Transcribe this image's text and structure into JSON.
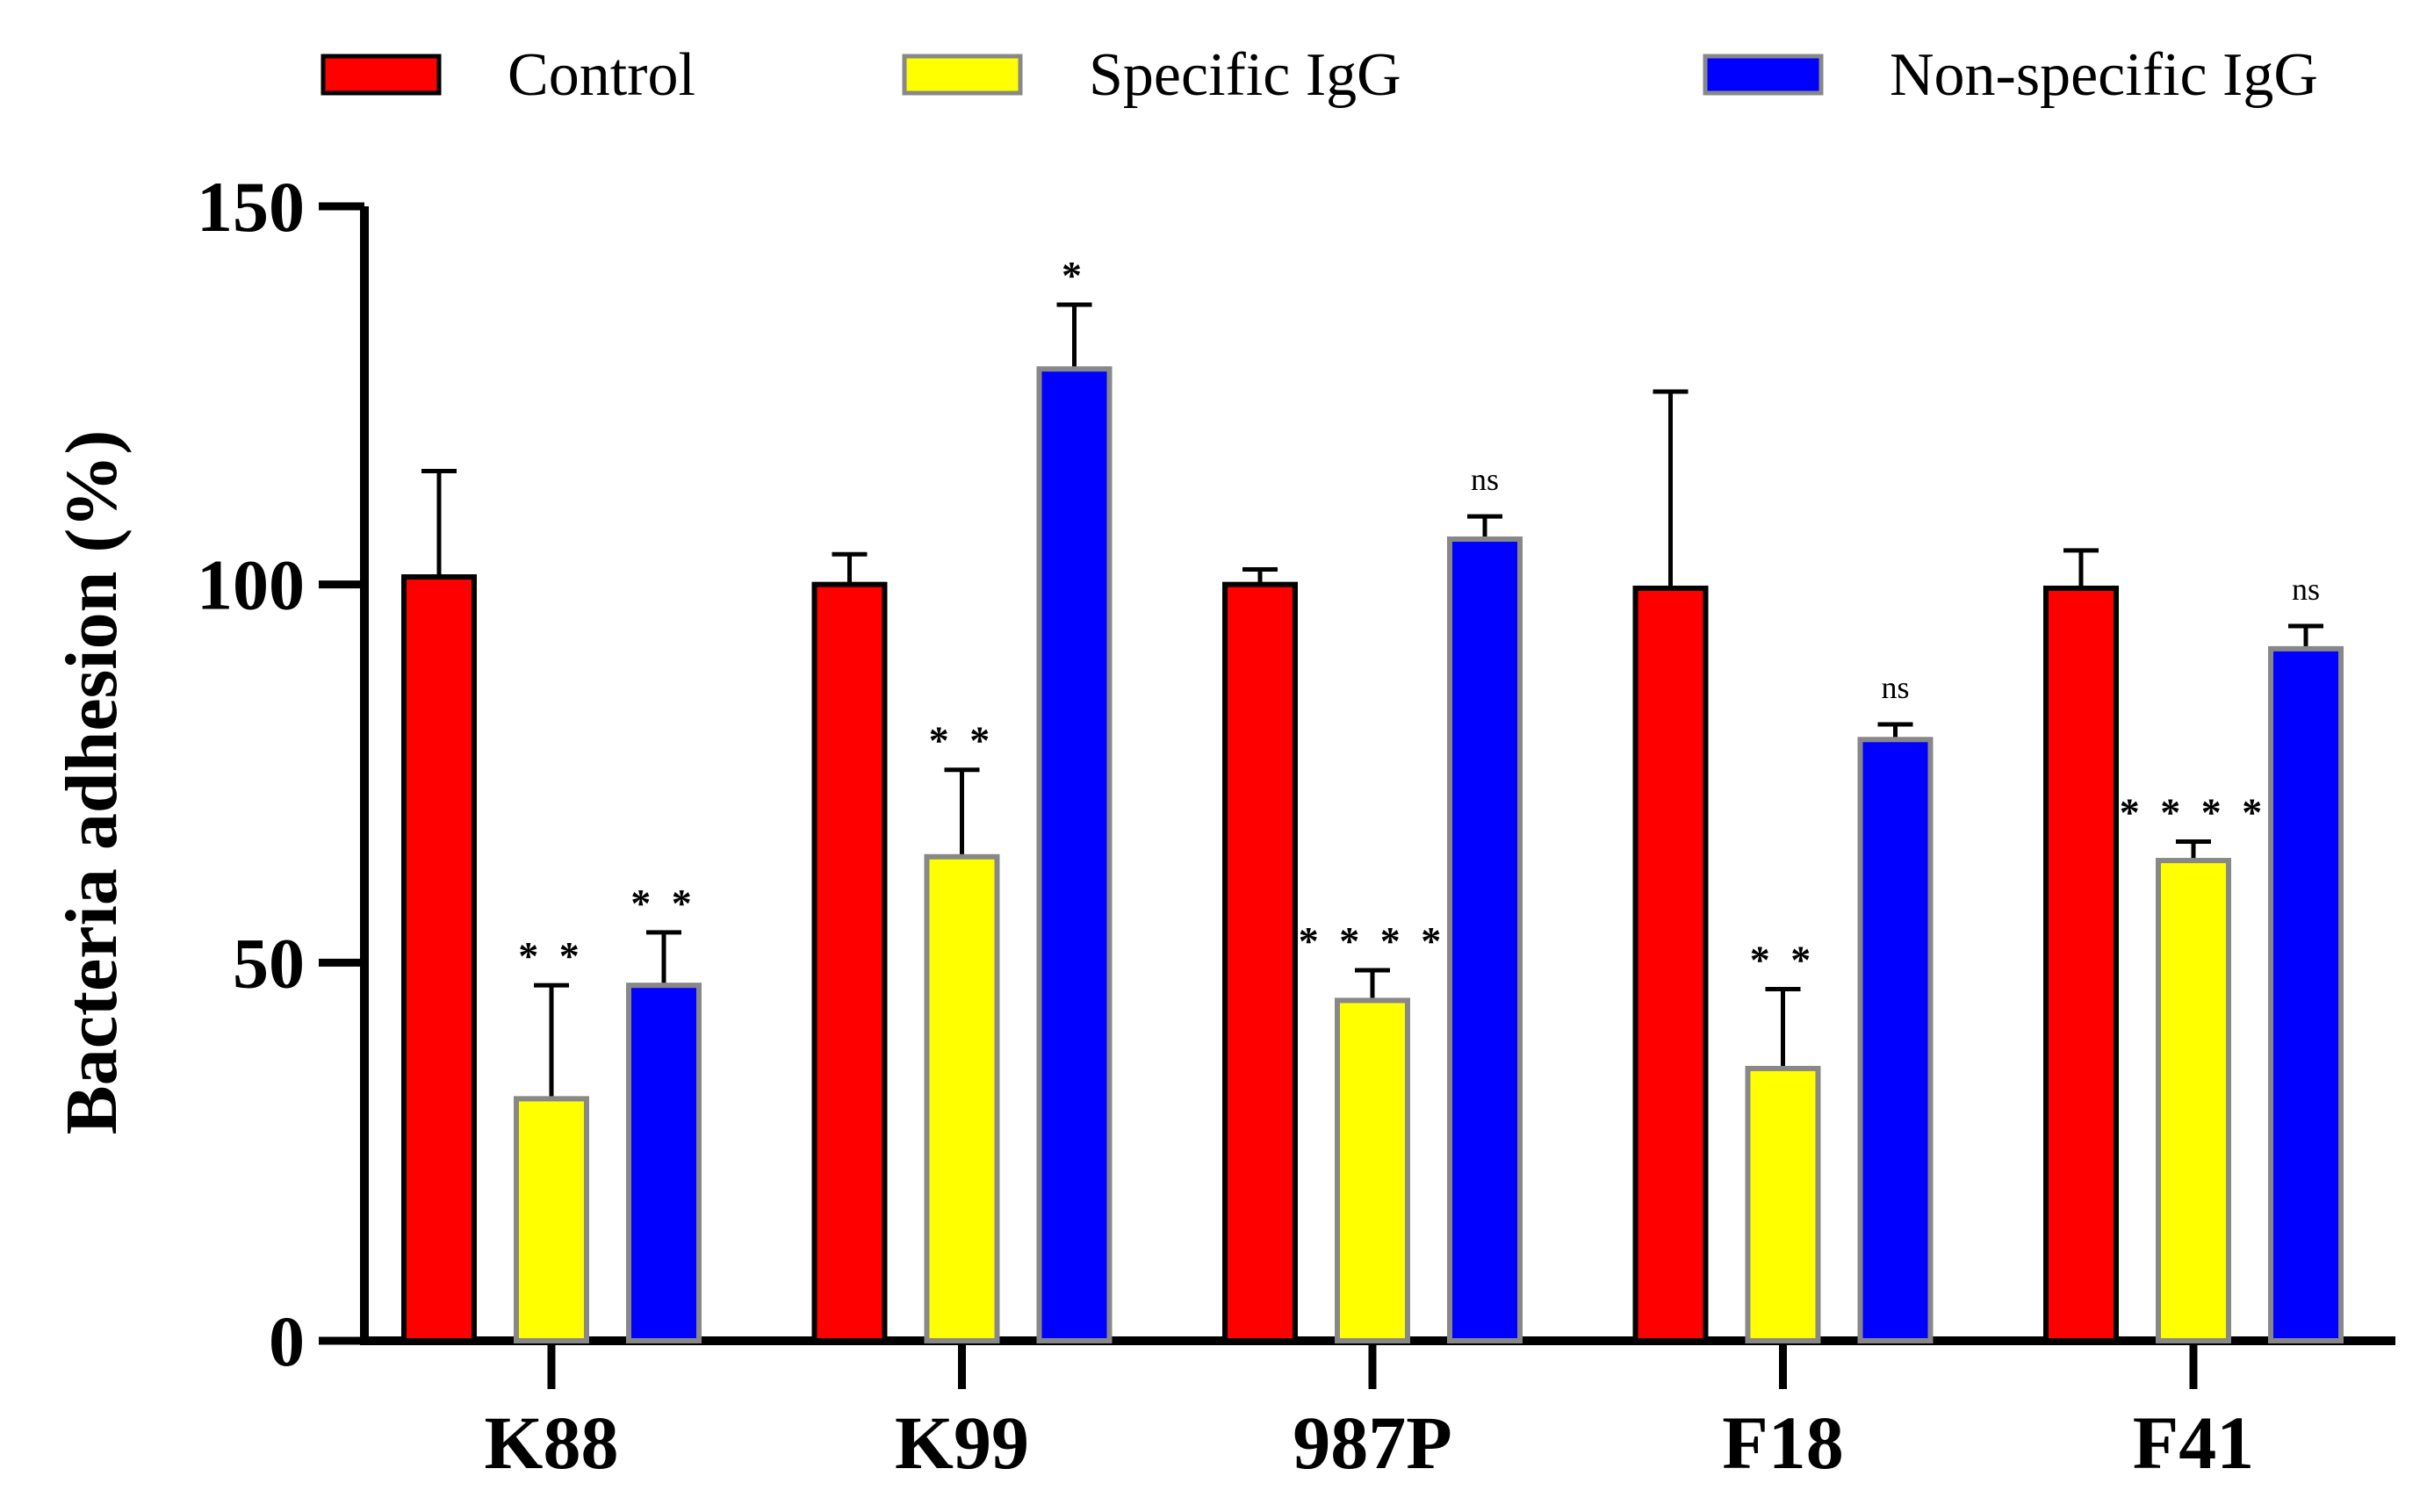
{
  "chart_data": {
    "type": "bar",
    "categories": [
      "K88",
      "K99",
      "987P",
      "F18",
      "F41"
    ],
    "series": [
      {
        "name": "Control",
        "color": "#ff0000",
        "values": [
          101,
          100,
          100,
          99.5,
          99.5
        ],
        "errors": [
          14,
          4,
          2,
          26,
          5
        ]
      },
      {
        "name": "Specific IgG",
        "color": "#ffff00",
        "values": [
          32,
          64,
          45,
          36,
          63.5
        ],
        "errors": [
          15,
          11.5,
          4,
          10.5,
          2.5
        ]
      },
      {
        "name": "Non-specific IgG",
        "color": "#0000ff",
        "values": [
          47,
          128.5,
          106,
          79.5,
          91.5
        ],
        "errors": [
          7,
          8.5,
          3,
          2,
          3
        ]
      }
    ],
    "significance": [
      [
        "",
        "* *",
        "* *"
      ],
      [
        "",
        "* *",
        "*"
      ],
      [
        "",
        "* * * *",
        "ns"
      ],
      [
        "",
        "* *",
        "ns"
      ],
      [
        "",
        "* * * *",
        "ns"
      ]
    ],
    "ylabel": "Bacteria adhesion (%)",
    "ylim": [
      0,
      150
    ],
    "yticks": [
      0,
      50,
      100,
      150
    ],
    "ytick_labels": [
      "0",
      "50",
      "100",
      "150"
    ],
    "grid": false,
    "legend_position": "top"
  }
}
